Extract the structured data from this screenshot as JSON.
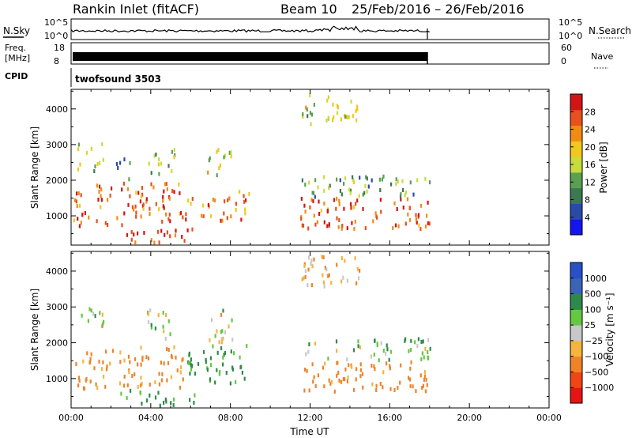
{
  "header": {
    "radar_title": "Rankin Inlet (fitACF)",
    "beam_label": "Beam 10",
    "date_range": "25/Feb/2016 – 26/Feb/2016"
  },
  "noise_panel": {
    "left_label": "N.Sky",
    "left_ticks": [
      "10^5",
      "10^0"
    ],
    "right_ticks": [
      "10^5",
      "10^0"
    ],
    "right_label": "N.Search"
  },
  "freq_panel": {
    "left_label_line1": "Freq.",
    "left_label_line2": "[MHz]",
    "left_ticks": [
      "18",
      "8"
    ],
    "right_ticks": [
      "60",
      "0"
    ],
    "right_label": "Nave"
  },
  "cpid_panel": {
    "label": "CPID",
    "program": "twofsound 3503"
  },
  "colors": {
    "power_scale": [
      "#1414f0",
      "#2a4aa8",
      "#3c7850",
      "#5aa050",
      "#c8dc3c",
      "#f0c81e",
      "#f08c14",
      "#e8501e",
      "#d21414"
    ],
    "velocity_scale": [
      "#e61414",
      "#f04614",
      "#f08228",
      "#f5b43c",
      "#c8c8c8",
      "#64c840",
      "#2e8a4a",
      "#3c64b4",
      "#2850c8"
    ]
  },
  "chart_data": [
    {
      "type": "heatmap",
      "name": "power",
      "xlabel": "",
      "ylabel": "Slant Range [km]",
      "xlim_hours": [
        0,
        24
      ],
      "ylim": [
        180,
        4550
      ],
      "y_ticks": [
        1000,
        2000,
        3000,
        4000
      ],
      "colorbar_label": "Power [dB]",
      "colorbar_ticks": [
        "4",
        "8",
        "12",
        "16",
        "20",
        "24",
        "28"
      ],
      "colorbar_range": [
        0,
        32
      ],
      "echo_regions": [
        {
          "t0": 0.1,
          "t1": 5.6,
          "r0": 700,
          "r1": 1900,
          "db": 26
        },
        {
          "t0": 0.3,
          "t1": 1.6,
          "r0": 2200,
          "r1": 3000,
          "db": 15
        },
        {
          "t0": 2.2,
          "t1": 3.0,
          "r0": 2000,
          "r1": 2700,
          "db": 10
        },
        {
          "t0": 3.8,
          "t1": 5.2,
          "r0": 2100,
          "r1": 2900,
          "db": 14
        },
        {
          "t0": 5.7,
          "t1": 9.0,
          "r0": 850,
          "r1": 1700,
          "db": 24
        },
        {
          "t0": 6.8,
          "t1": 8.1,
          "r0": 2000,
          "r1": 2900,
          "db": 17
        },
        {
          "t0": 2.4,
          "t1": 6.2,
          "r0": 220,
          "r1": 650,
          "db": 27
        },
        {
          "t0": 11.5,
          "t1": 18.0,
          "r0": 600,
          "r1": 1500,
          "db": 26
        },
        {
          "t0": 11.5,
          "t1": 18.0,
          "r0": 1500,
          "r1": 2100,
          "db": 12
        },
        {
          "t0": 11.5,
          "t1": 14.5,
          "r0": 3500,
          "r1": 4400,
          "db": 16
        }
      ]
    },
    {
      "type": "heatmap",
      "name": "velocity",
      "xlabel": "Time UT",
      "ylabel": "Slant Range [km]",
      "xlim_hours": [
        0,
        24
      ],
      "ylim": [
        180,
        4550
      ],
      "y_ticks": [
        1000,
        2000,
        3000,
        4000
      ],
      "x_ticks": [
        "00:00",
        "04:00",
        "08:00",
        "12:00",
        "16:00",
        "20:00",
        "00:00"
      ],
      "colorbar_label": "Velocity [m s⁻¹]",
      "colorbar_ticks": [
        "1000",
        "500",
        "100",
        "25",
        "−25",
        "−100",
        "−500",
        "−1000"
      ],
      "echo_regions": [
        {
          "t0": 0.1,
          "t1": 5.6,
          "r0": 700,
          "r1": 1900,
          "vel": -150
        },
        {
          "t0": 0.3,
          "t1": 1.6,
          "r0": 2200,
          "r1": 3000,
          "vel": 0
        },
        {
          "t0": 3.8,
          "t1": 5.2,
          "r0": 2100,
          "r1": 2900,
          "vel": 0
        },
        {
          "t0": 5.7,
          "t1": 9.0,
          "r0": 850,
          "r1": 1900,
          "vel": 150
        },
        {
          "t0": 6.8,
          "t1": 8.1,
          "r0": 2000,
          "r1": 2900,
          "vel": 0
        },
        {
          "t0": 2.4,
          "t1": 6.2,
          "r0": 220,
          "r1": 650,
          "vel": 150
        },
        {
          "t0": 11.5,
          "t1": 18.0,
          "r0": 600,
          "r1": 1500,
          "vel": -200
        },
        {
          "t0": 11.5,
          "t1": 18.0,
          "r0": 1500,
          "r1": 2100,
          "vel": 80
        },
        {
          "t0": 11.5,
          "t1": 14.5,
          "r0": 3500,
          "r1": 4400,
          "vel": -100
        }
      ]
    }
  ]
}
